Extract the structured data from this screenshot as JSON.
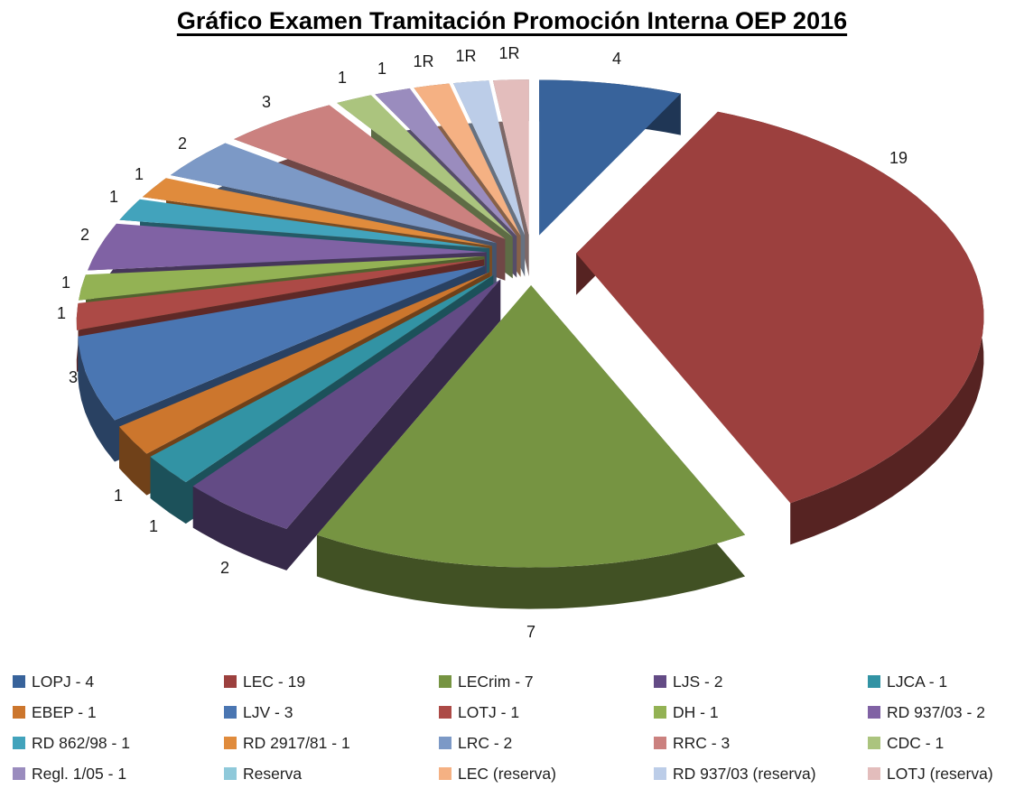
{
  "title": "Gráfico Examen Tramitación Promoción Interna OEP 2016",
  "chart_data": {
    "type": "pie",
    "pie_3d": true,
    "exploded": true,
    "start_angle_deg": 0,
    "direction": "clockwise",
    "total": 53,
    "categories": [
      "LOPJ",
      "LEC",
      "LECrim",
      "LJS",
      "LJCA",
      "EBEP",
      "LJV",
      "LOTJ",
      "DH",
      "RD 937/03",
      "RD 862/98",
      "RD 2917/81",
      "LRC",
      "RRC",
      "CDC",
      "Regl. 1/05",
      "Reserva",
      "LEC (reserva)",
      "RD 937/03 (reserva)",
      "LOTJ (reserva)"
    ],
    "values": [
      4,
      19,
      7,
      2,
      1,
      1,
      3,
      1,
      1,
      2,
      1,
      1,
      2,
      3,
      1,
      1,
      0,
      1,
      1,
      1
    ],
    "slice_labels": [
      "4",
      "19",
      "7",
      "2",
      "1",
      "1",
      "3",
      "1",
      "1",
      "2",
      "1",
      "1",
      "2",
      "3",
      "1",
      "1",
      "",
      "1R",
      "1R",
      "1R"
    ],
    "colors": [
      "#38639B",
      "#9C403E",
      "#769442",
      "#634B85",
      "#3293A4",
      "#CC762D",
      "#4A76B2",
      "#AC4A46",
      "#93B254",
      "#8062A4",
      "#42A3BC",
      "#E08B3C",
      "#7C99C6",
      "#CB817F",
      "#ABC47E",
      "#9A8CBE",
      "#8FC9DA",
      "#F5B183",
      "#BCCDE8",
      "#E3BDBC"
    ],
    "label_angle_overrides": {
      "1": 63
    },
    "legend_position": "bottom",
    "legend_labels": [
      "LOPJ - 4",
      "LEC - 19",
      "LECrim - 7",
      "LJS - 2",
      "LJCA - 1",
      "EBEP - 1",
      "LJV - 3",
      "LOTJ - 1",
      "DH - 1",
      "RD 937/03 - 2",
      "RD 862/98 - 1",
      "RD 2917/81 - 1",
      "LRC - 2",
      "RRC - 3",
      "CDC - 1",
      "Regl. 1/05 - 1",
      "Reserva",
      "LEC (reserva)",
      "RD 937/03 (reserva)",
      "LOTJ (reserva)"
    ]
  }
}
